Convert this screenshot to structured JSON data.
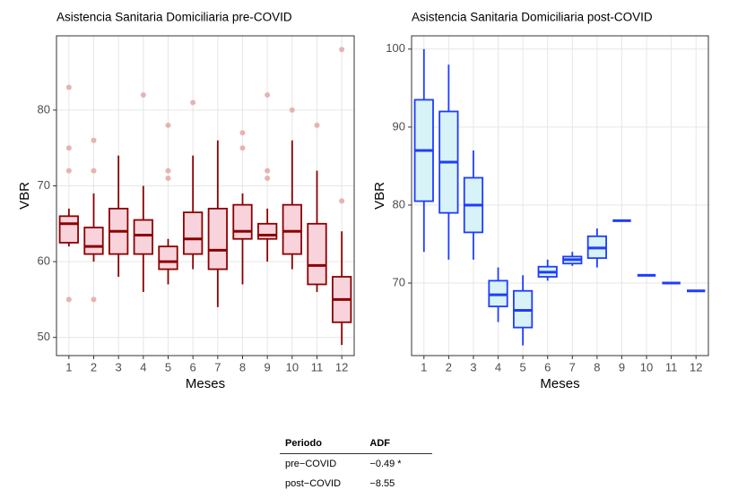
{
  "chart_data": [
    {
      "type": "boxplot",
      "title": "Asistencia Sanitaria Domiciliaria pre-COVID",
      "x_label": "Meses",
      "y_label": "VBR",
      "categories": [
        "1",
        "2",
        "3",
        "4",
        "5",
        "6",
        "7",
        "8",
        "9",
        "10",
        "11",
        "12"
      ],
      "min": [
        62,
        60,
        58,
        56,
        57,
        59,
        54,
        57,
        60,
        59,
        56,
        49
      ],
      "q1": [
        62.5,
        61,
        61,
        61,
        59,
        61,
        59,
        63,
        63,
        61,
        57,
        52
      ],
      "median": [
        65,
        62,
        64,
        63.5,
        60,
        63,
        61.5,
        64,
        63.5,
        64,
        59.5,
        55
      ],
      "q3": [
        66,
        64.5,
        67,
        65.5,
        62,
        66.5,
        67,
        67.5,
        65,
        67.5,
        65,
        58
      ],
      "max": [
        67,
        69,
        74,
        70,
        63,
        74,
        76,
        69,
        67,
        76,
        72,
        64
      ],
      "outliers": [
        [
          55,
          72,
          75,
          83
        ],
        [
          55,
          72,
          76
        ],
        [],
        [
          82
        ],
        [
          71,
          72,
          78
        ],
        [
          81
        ],
        [],
        [
          75,
          77
        ],
        [
          71,
          72,
          82
        ],
        [
          80
        ],
        [
          78
        ],
        [
          68,
          88
        ]
      ],
      "color": "#8b0000",
      "fill": "#f9d3dc",
      "outlier_color": "#e5b3b3",
      "ylim": [
        47.6,
        89.8
      ],
      "yticks": [
        50,
        60,
        70,
        80
      ],
      "grid": true
    },
    {
      "type": "boxplot",
      "title": "Asistencia Sanitaria Domiciliaria post-COVID",
      "x_label": "Meses",
      "y_label": "VBR",
      "categories": [
        "1",
        "2",
        "3",
        "4",
        "5",
        "6",
        "7",
        "8",
        "9",
        "10",
        "11",
        "12"
      ],
      "min": [
        74,
        73,
        73,
        65,
        62,
        70.3,
        72.2,
        72,
        78,
        71,
        70,
        69
      ],
      "q1": [
        80.5,
        79,
        76.5,
        67,
        64.3,
        70.8,
        72.5,
        73.2,
        78,
        71,
        70,
        69
      ],
      "median": [
        87,
        85.5,
        80,
        68.5,
        66.5,
        71.4,
        73,
        74.5,
        78,
        71,
        70,
        69
      ],
      "q3": [
        93.5,
        92,
        83.5,
        70.3,
        69,
        72.1,
        73.4,
        76,
        78,
        71,
        70,
        69
      ],
      "max": [
        100,
        98,
        87,
        72,
        71,
        73,
        74,
        77,
        78,
        71,
        70,
        69
      ],
      "outliers": [
        [],
        [],
        [],
        [],
        [],
        [],
        [],
        [],
        [],
        [],
        [],
        []
      ],
      "color": "#1f3cff",
      "fill": "#d7f3f7",
      "outlier_color": "#9fb0ff",
      "ylim": [
        60.7,
        101.7
      ],
      "yticks": [
        70,
        80,
        90,
        100
      ],
      "grid": true
    }
  ],
  "table": {
    "columns": [
      "Periodo",
      "ADF"
    ],
    "rows": [
      [
        "pre−COVID",
        "−0.49 *"
      ],
      [
        "post−COVID",
        "−8.55"
      ]
    ]
  }
}
